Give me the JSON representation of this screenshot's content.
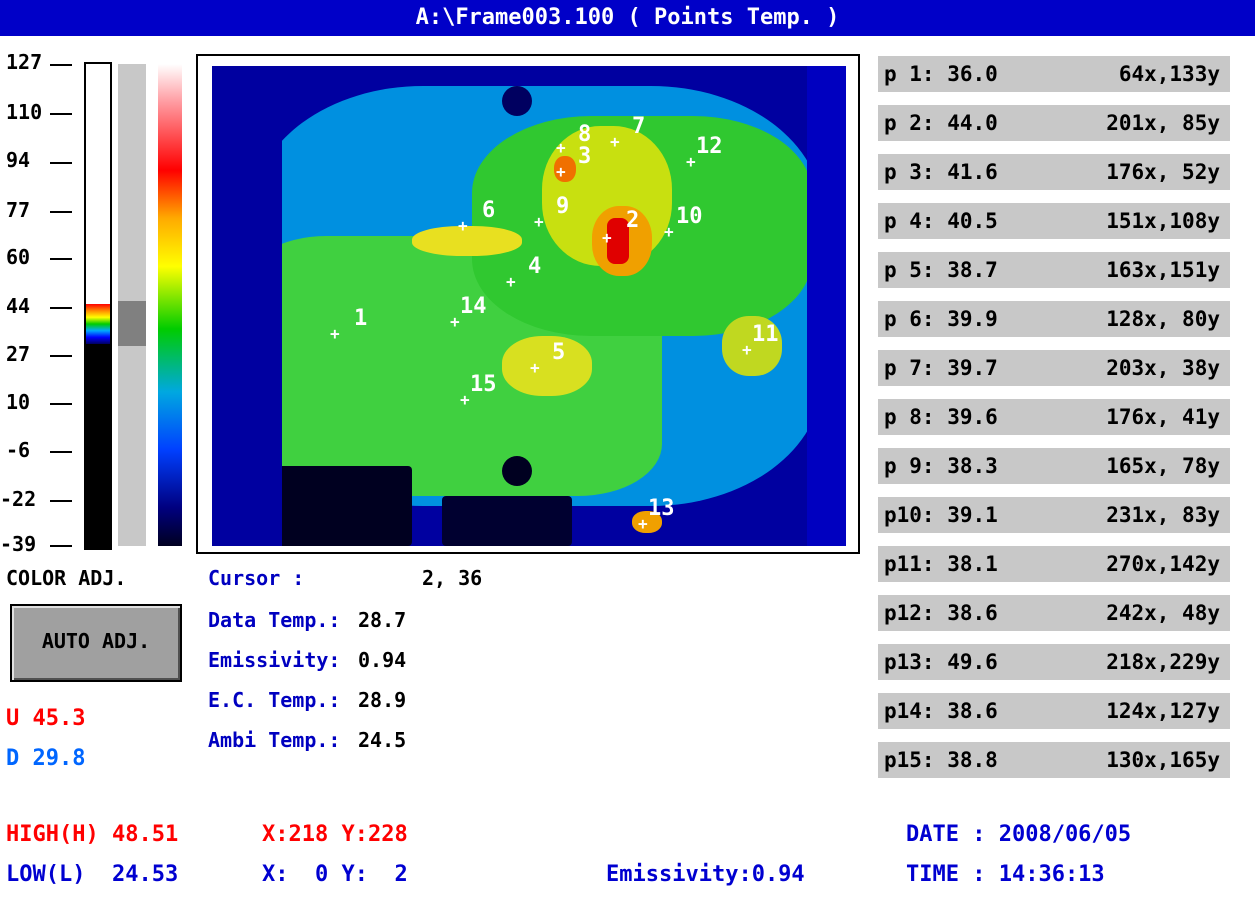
{
  "title": "A:\\Frame003.100 ( Points Temp. )",
  "scale": {
    "labels": [
      "127",
      "110",
      "94",
      "77",
      "60",
      "44",
      "27",
      "10",
      "-6",
      "-22",
      "-39"
    ]
  },
  "colors": {
    "title_bg": "#0000c8",
    "label_blue": "#0000c0",
    "red": "#ff0000",
    "light_blue": "#0066ff",
    "panel_gray": "#c8c8c8"
  },
  "marker_numbers": [
    "1",
    "2",
    "3",
    "4",
    "5",
    "6",
    "7",
    "8",
    "9",
    "10",
    "11",
    "12",
    "13",
    "14",
    "15"
  ],
  "color_adj_label": "COLOR ADJ.",
  "auto_adj_label": "AUTO ADJ.",
  "upper": "U 45.3",
  "lower": "D 29.8",
  "info": {
    "cursor_label": "Cursor     :",
    "cursor_value": "2, 36",
    "data_temp_label": "Data Temp.:",
    "data_temp_value": "28.7",
    "emissivity_label": "Emissivity:",
    "emissivity_value": "0.94",
    "ec_temp_label": "E.C. Temp.:",
    "ec_temp_value": "28.9",
    "ambi_temp_label": "Ambi Temp.:",
    "ambi_temp_value": "24.5"
  },
  "points": [
    {
      "label": "p 1: 36.0",
      "coord": "64x,133y"
    },
    {
      "label": "p 2: 44.0",
      "coord": "201x, 85y"
    },
    {
      "label": "p 3: 41.6",
      "coord": "176x, 52y"
    },
    {
      "label": "p 4: 40.5",
      "coord": "151x,108y"
    },
    {
      "label": "p 5: 38.7",
      "coord": "163x,151y"
    },
    {
      "label": "p 6: 39.9",
      "coord": "128x, 80y"
    },
    {
      "label": "p 7: 39.7",
      "coord": "203x, 38y"
    },
    {
      "label": "p 8: 39.6",
      "coord": "176x, 41y"
    },
    {
      "label": "p 9: 38.3",
      "coord": "165x, 78y"
    },
    {
      "label": "p10: 39.1",
      "coord": "231x, 83y"
    },
    {
      "label": "p11: 38.1",
      "coord": "270x,142y"
    },
    {
      "label": "p12: 38.6",
      "coord": "242x, 48y"
    },
    {
      "label": "p13: 49.6",
      "coord": "218x,229y"
    },
    {
      "label": "p14: 38.6",
      "coord": "124x,127y"
    },
    {
      "label": "p15: 38.8",
      "coord": "130x,165y"
    }
  ],
  "bottom": {
    "high": "HIGH(H) 48.51",
    "high_xy": "X:218 Y:228",
    "low": "LOW(L)  24.53",
    "low_xy": "X:  0 Y:  2",
    "emissivity": "Emissivity:0.94",
    "date": "DATE : 2008/06/05",
    "time": "TIME : 14:36:13"
  }
}
